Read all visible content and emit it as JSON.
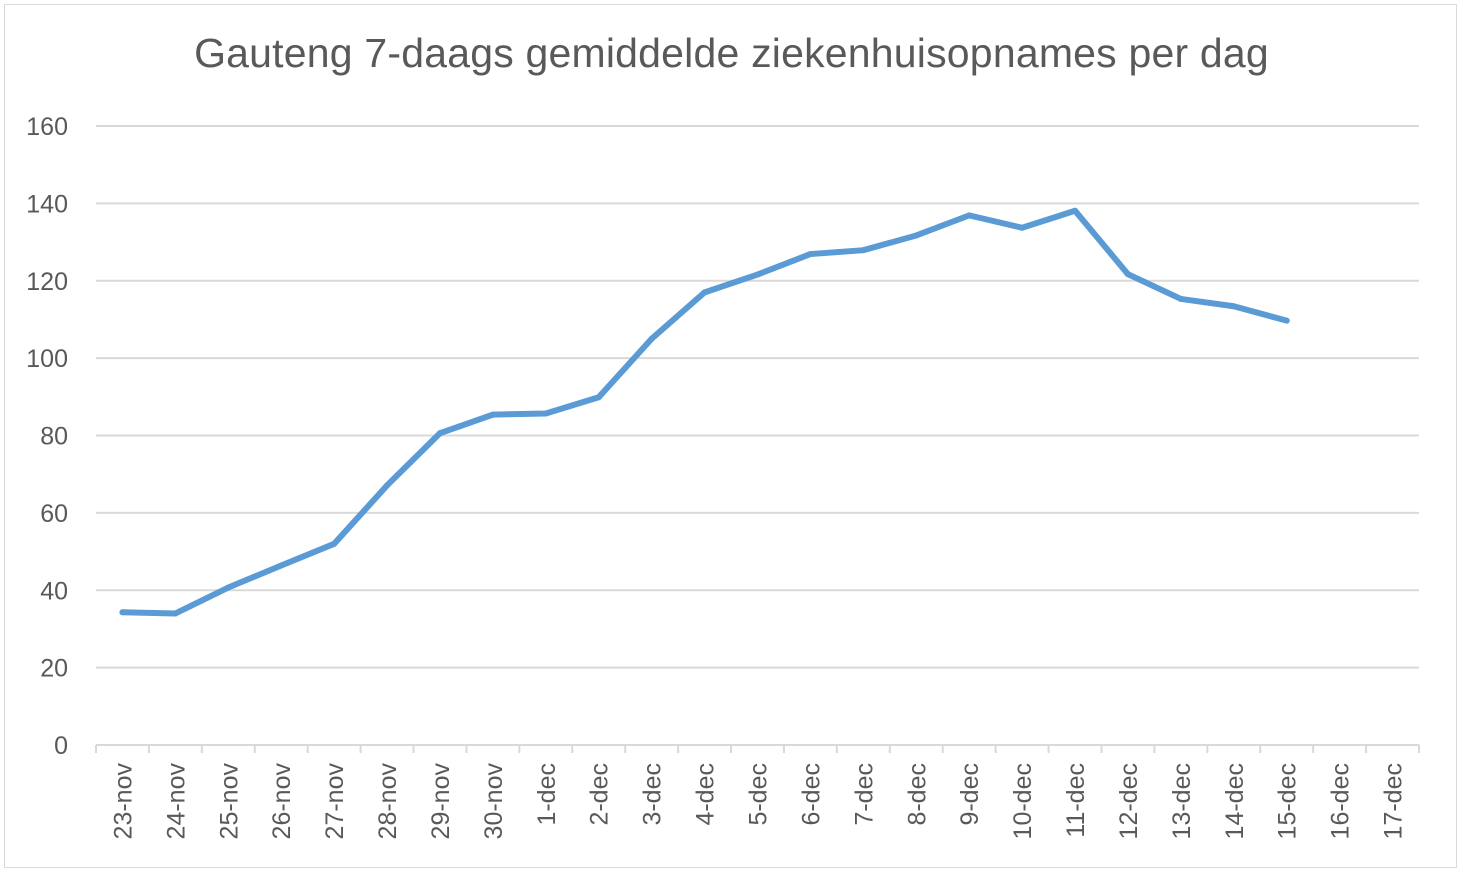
{
  "chart_data": {
    "type": "line",
    "title": "Gauteng 7-daags gemiddelde ziekenhuisopnames per dag",
    "xlabel": "",
    "ylabel": "",
    "ylim": [
      0,
      160
    ],
    "yticks": [
      0,
      20,
      40,
      60,
      80,
      100,
      120,
      140,
      160
    ],
    "grid": true,
    "legend": "none",
    "categories": [
      "23-nov",
      "24-nov",
      "25-nov",
      "26-nov",
      "27-nov",
      "28-nov",
      "29-nov",
      "30-nov",
      "1-dec",
      "2-dec",
      "3-dec",
      "4-dec",
      "5-dec",
      "6-dec",
      "7-dec",
      "8-dec",
      "9-dec",
      "10-dec",
      "11-dec",
      "12-dec",
      "13-dec",
      "14-dec",
      "15-dec",
      "16-dec",
      "17-dec"
    ],
    "series": [
      {
        "color": "#5b9bd5",
        "values": [
          34.3,
          34.0,
          40.7,
          46.4,
          52.0,
          67.1,
          80.6,
          85.4,
          85.7,
          89.9,
          105.0,
          117.0,
          121.6,
          126.9,
          127.9,
          131.7,
          136.9,
          133.7,
          138.1,
          121.7,
          115.3,
          113.4,
          109.7,
          null,
          null
        ]
      }
    ],
    "colors": {
      "line": "#5b9bd5",
      "grid": "#d9d9d9",
      "axis": "#d9d9d9",
      "text": "#595959"
    }
  }
}
